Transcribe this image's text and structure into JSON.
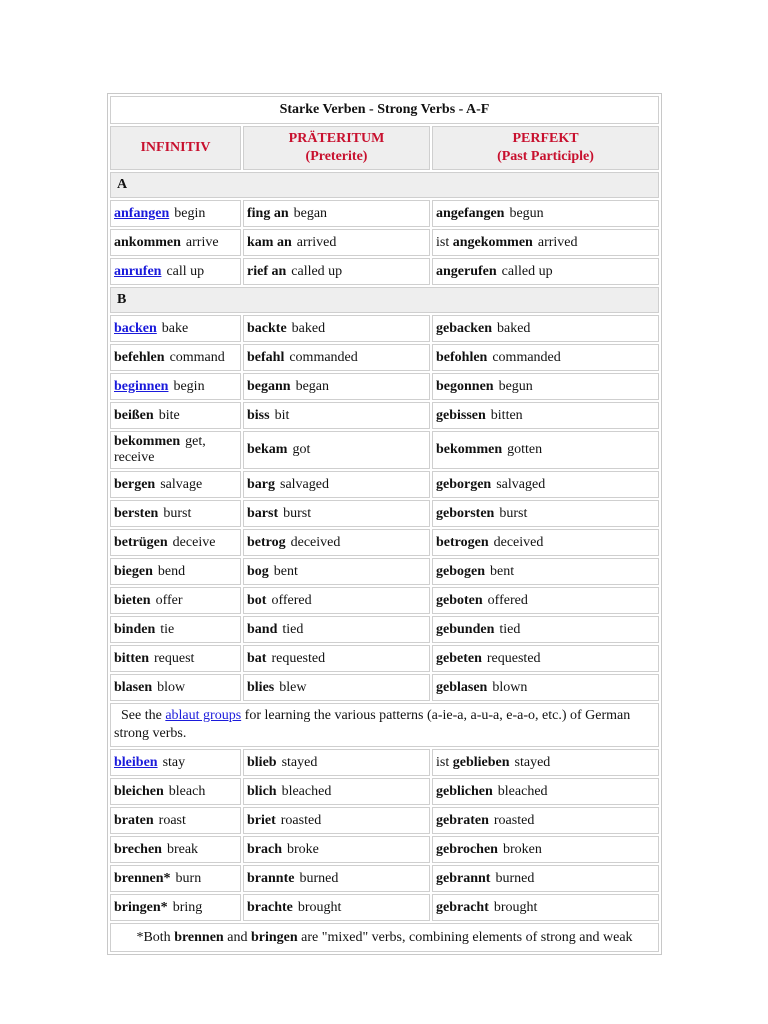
{
  "title": "Starke Verben - Strong Verbs - A-F",
  "headers": [
    {
      "label": "INFINITIV",
      "sub": ""
    },
    {
      "label": "PRÄTERITUM",
      "sub": "(Preterite)"
    },
    {
      "label": "PERFEKT",
      "sub": "(Past Participle)"
    }
  ],
  "colors": {
    "header_text": "#c8102e",
    "link": "#1a1adb",
    "section_bg": "#eeeeee"
  },
  "rows": [
    {
      "type": "section",
      "label": "A"
    },
    {
      "type": "verb",
      "cells": [
        {
          "word": "anfangen",
          "link": true,
          "tr": "begin"
        },
        {
          "word": "fing an",
          "tr": "began"
        },
        {
          "word": "angefangen",
          "tr": "begun"
        }
      ]
    },
    {
      "type": "verb",
      "cells": [
        {
          "word": "ankommen",
          "tr": "arrive"
        },
        {
          "word": "kam an",
          "tr": "arrived"
        },
        {
          "pre": "ist",
          "word": "angekommen",
          "tr": "arrived"
        }
      ]
    },
    {
      "type": "verb",
      "cells": [
        {
          "word": "anrufen",
          "link": true,
          "tr": "call up"
        },
        {
          "word": "rief an",
          "tr": "called up"
        },
        {
          "word": "angerufen",
          "tr": "called up"
        }
      ]
    },
    {
      "type": "section",
      "label": "B"
    },
    {
      "type": "verb",
      "cells": [
        {
          "word": "backen",
          "link": true,
          "tr": "bake"
        },
        {
          "word": "backte",
          "tr": "baked"
        },
        {
          "word": "gebacken",
          "tr": "baked"
        }
      ]
    },
    {
      "type": "verb",
      "cells": [
        {
          "word": "befehlen",
          "tr": "command"
        },
        {
          "word": "befahl",
          "tr": "commanded"
        },
        {
          "word": "befohlen",
          "tr": "commanded"
        }
      ]
    },
    {
      "type": "verb",
      "cells": [
        {
          "word": "beginnen",
          "link": true,
          "tr": "begin"
        },
        {
          "word": "begann",
          "tr": "began"
        },
        {
          "word": "begonnen",
          "tr": "begun"
        }
      ]
    },
    {
      "type": "verb",
      "cells": [
        {
          "word": "beißen",
          "tr": "bite"
        },
        {
          "word": "biss",
          "tr": "bit"
        },
        {
          "word": "gebissen",
          "tr": "bitten"
        }
      ]
    },
    {
      "type": "verb",
      "cells": [
        {
          "word": "bekommen",
          "tr": "get, receive"
        },
        {
          "word": "bekam",
          "tr": "got"
        },
        {
          "word": "bekommen",
          "tr": "gotten"
        }
      ]
    },
    {
      "type": "verb",
      "cells": [
        {
          "word": "bergen",
          "tr": "salvage"
        },
        {
          "word": "barg",
          "tr": "salvaged"
        },
        {
          "word": "geborgen",
          "tr": "salvaged"
        }
      ]
    },
    {
      "type": "verb",
      "cells": [
        {
          "word": "bersten",
          "tr": "burst"
        },
        {
          "word": "barst",
          "tr": "burst"
        },
        {
          "word": "geborsten",
          "tr": "burst"
        }
      ]
    },
    {
      "type": "verb",
      "cells": [
        {
          "word": "betrügen",
          "tr": "deceive"
        },
        {
          "word": "betrog",
          "tr": "deceived"
        },
        {
          "word": "betrogen",
          "tr": "deceived"
        }
      ]
    },
    {
      "type": "verb",
      "cells": [
        {
          "word": "biegen",
          "tr": "bend"
        },
        {
          "word": "bog",
          "tr": "bent"
        },
        {
          "word": "gebogen",
          "tr": "bent"
        }
      ]
    },
    {
      "type": "verb",
      "cells": [
        {
          "word": "bieten",
          "tr": "offer"
        },
        {
          "word": "bot",
          "tr": "offered"
        },
        {
          "word": "geboten",
          "tr": "offered"
        }
      ]
    },
    {
      "type": "verb",
      "cells": [
        {
          "word": "binden",
          "tr": "tie"
        },
        {
          "word": "band",
          "tr": "tied"
        },
        {
          "word": "gebunden",
          "tr": "tied"
        }
      ]
    },
    {
      "type": "verb",
      "cells": [
        {
          "word": "bitten",
          "tr": "request"
        },
        {
          "word": "bat",
          "tr": "requested"
        },
        {
          "word": "gebeten",
          "tr": "requested"
        }
      ]
    },
    {
      "type": "verb",
      "cells": [
        {
          "word": "blasen",
          "tr": "blow"
        },
        {
          "word": "blies",
          "tr": "blew"
        },
        {
          "word": "geblasen",
          "tr": "blown"
        }
      ]
    },
    {
      "type": "note",
      "parts": [
        {
          "t": "  See the "
        },
        {
          "t": "ablaut groups",
          "link": true
        },
        {
          "t": " for learning the various patterns (a-ie-a, a-u-a, e-a-o, etc.) of German strong verbs."
        }
      ]
    },
    {
      "type": "verb",
      "cells": [
        {
          "word": "bleiben",
          "link": true,
          "tr": "stay"
        },
        {
          "word": "blieb",
          "tr": "stayed"
        },
        {
          "pre": "ist",
          "word": "geblieben",
          "tr": "stayed"
        }
      ]
    },
    {
      "type": "verb",
      "cells": [
        {
          "word": "bleichen",
          "tr": "bleach"
        },
        {
          "word": "blich",
          "tr": "bleached"
        },
        {
          "word": "geblichen",
          "tr": "bleached"
        }
      ]
    },
    {
      "type": "verb",
      "cells": [
        {
          "word": "braten",
          "tr": "roast"
        },
        {
          "word": "briet",
          "tr": "roasted"
        },
        {
          "word": "gebraten",
          "tr": "roasted"
        }
      ]
    },
    {
      "type": "verb",
      "cells": [
        {
          "word": "brechen",
          "tr": "break"
        },
        {
          "word": "brach",
          "tr": "broke"
        },
        {
          "word": "gebrochen",
          "tr": "broken"
        }
      ]
    },
    {
      "type": "verb",
      "cells": [
        {
          "word": "brennen*",
          "tr": "burn"
        },
        {
          "word": "brannte",
          "tr": "burned"
        },
        {
          "word": "gebrannt",
          "tr": "burned"
        }
      ]
    },
    {
      "type": "verb",
      "cells": [
        {
          "word": "bringen*",
          "tr": "bring"
        },
        {
          "word": "brachte",
          "tr": "brought"
        },
        {
          "word": "gebracht",
          "tr": "brought"
        }
      ]
    },
    {
      "type": "note",
      "center": true,
      "parts": [
        {
          "t": "*Both "
        },
        {
          "t": "brennen",
          "bold": true
        },
        {
          "t": " and "
        },
        {
          "t": "bringen",
          "bold": true
        },
        {
          "t": " are \"mixed\" verbs, combining elements of strong and weak"
        }
      ]
    }
  ]
}
